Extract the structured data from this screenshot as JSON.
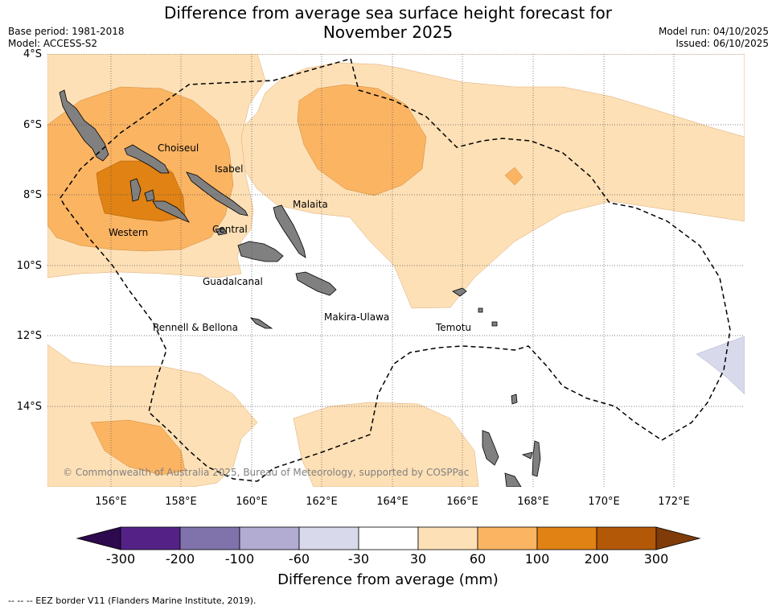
{
  "title": {
    "line1": "Difference from average sea surface height forecast for",
    "line2": "November 2025"
  },
  "meta": {
    "base_period": "Base period: 1981-2018",
    "model": "Model: ACCESS-S2",
    "model_run": "Model run: 04/10/2025",
    "issued": "Issued: 06/10/2025"
  },
  "latitude_labels": [
    "4°S",
    "6°S",
    "8°S",
    "10°S",
    "12°S",
    "14°S"
  ],
  "longitude_labels": [
    "156°E",
    "158°E",
    "160°E",
    "162°E",
    "164°E",
    "166°E",
    "168°E",
    "170°E",
    "172°E"
  ],
  "provinces": [
    "Choiseul",
    "Isabel",
    "Malaita",
    "Central",
    "Western",
    "Guadalcanal",
    "Makira-Ulawa",
    "Rennell & Bellona",
    "Temotu"
  ],
  "copyright": "© Commonwealth of Australia 2025, Bureau of Meteorology, supported by COSPPac",
  "colorbar": {
    "label": "Difference from average (mm)",
    "ticks": [
      "-300",
      "-200",
      "-100",
      "-60",
      "-30",
      "30",
      "60",
      "100",
      "200",
      "300"
    ],
    "colors": {
      "below_-300": "#2d0a4e",
      "-300_-200": "#542287",
      "-200_-100": "#8073ac",
      "-100_-60": "#b2abd2",
      "-60_-30": "#d8daeb",
      "-30_30": "#ffffff",
      "30_60": "#fee0b6",
      "60_100": "#fbb462",
      "100_200": "#e08214",
      "200_300": "#b35806",
      "above_300": "#7f3b08"
    }
  },
  "footer": "-- -- -- EEZ border V11 (Flanders Marine Institute, 2019).",
  "colors": {
    "land": "#808080",
    "grid": "#555555",
    "eez": "#000000"
  }
}
